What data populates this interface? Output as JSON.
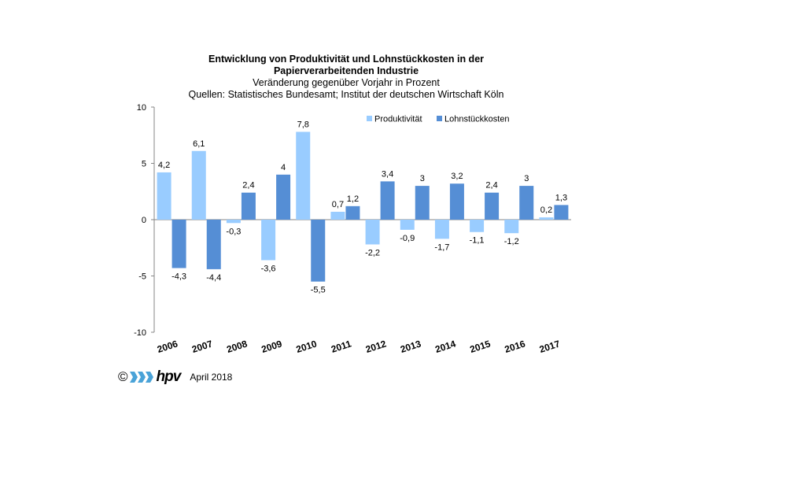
{
  "chart_data": {
    "type": "bar",
    "title": "Entwicklung von Produktivität und Lohnstückkosten  in der Papierverarbeitenden Industrie",
    "title_line1": "Entwicklung von Produktivität und Lohnstückkosten  in der",
    "title_line2": "Papierverarbeitenden Industrie",
    "subtitle": "Veränderung  gegenüber  Vorjahr  in Prozent",
    "source": "Quellen: Statistisches Bundesamt; Institut der deutschen Wirtschaft Köln",
    "categories": [
      "2006",
      "2007",
      "2008",
      "2009",
      "2010",
      "2011",
      "2012",
      "2013",
      "2014",
      "2015",
      "2016",
      "2017"
    ],
    "series": [
      {
        "name": "Produktivität",
        "color": "#99ccff",
        "values": [
          4.2,
          6.1,
          -0.3,
          -3.6,
          7.8,
          0.7,
          -2.2,
          -0.9,
          -1.7,
          -1.1,
          -1.2,
          0.2
        ],
        "labels": [
          "4,2",
          "6,1",
          "-0,3",
          "-3,6",
          "7,8",
          "0,7",
          "-2,2",
          "-0,9",
          "-1,7",
          "-1,1",
          "-1,2",
          "0,2"
        ]
      },
      {
        "name": "Lohnstückkosten",
        "color": "#558ed5",
        "values": [
          -4.3,
          -4.4,
          2.4,
          4,
          -5.5,
          1.2,
          3.4,
          3,
          3.2,
          2.4,
          3,
          1.3
        ],
        "labels": [
          "-4,3",
          "-4,4",
          "2,4",
          "4",
          "-5,5",
          "1,2",
          "3,4",
          "3",
          "3,2",
          "2,4",
          "3",
          "1,3"
        ]
      }
    ],
    "yticks": [
      "10",
      "5",
      "0",
      "-5",
      "-10"
    ],
    "ylim": [
      -10,
      10
    ],
    "grid": false,
    "legend_position": "top-right"
  },
  "footer": {
    "copyright_symbol": "©",
    "logo_text": "hpv",
    "logo_icon": "hpv-arrows-logo",
    "date": "April 2018"
  }
}
